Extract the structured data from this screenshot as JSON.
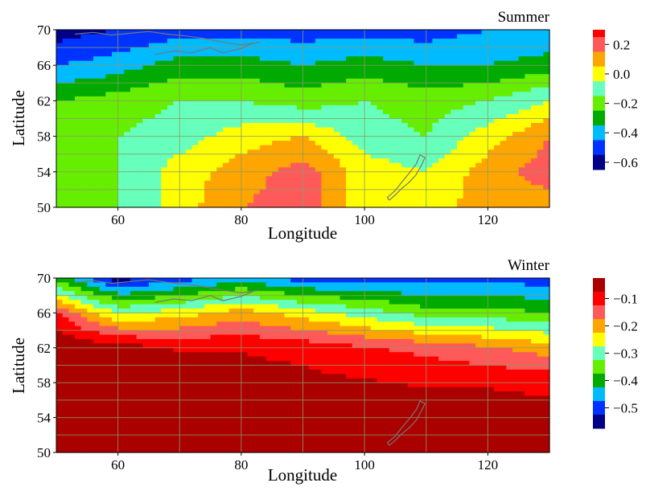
{
  "chart_data": [
    {
      "type": "heatmap",
      "title": "Summer",
      "xlabel": "Longitude",
      "ylabel": "Latitude",
      "xlim": [
        50,
        130
      ],
      "ylim": [
        50,
        70
      ],
      "xticks": [
        "60",
        "80",
        "100",
        "120"
      ],
      "yticks": [
        "50",
        "54",
        "58",
        "62",
        "66",
        "70"
      ],
      "grid": true,
      "colorbar": {
        "ticks": [
          "0.2",
          "0.0",
          "−0.2",
          "−0.4",
          "−0.6"
        ],
        "tick_values": [
          0.2,
          0.0,
          -0.2,
          -0.4,
          -0.6
        ],
        "levels": [
          {
            "max": 0.3,
            "min": 0.25,
            "color": "#ff0000"
          },
          {
            "max": 0.25,
            "min": 0.15,
            "color": "#ff5a5a"
          },
          {
            "max": 0.15,
            "min": 0.05,
            "color": "#ffa500"
          },
          {
            "max": 0.05,
            "min": -0.05,
            "color": "#ffff00"
          },
          {
            "max": -0.05,
            "min": -0.15,
            "color": "#66ffbb"
          },
          {
            "max": -0.15,
            "min": -0.25,
            "color": "#66ee00"
          },
          {
            "max": -0.25,
            "min": -0.35,
            "color": "#00aa00"
          },
          {
            "max": -0.35,
            "min": -0.45,
            "color": "#00bbff"
          },
          {
            "max": -0.45,
            "min": -0.55,
            "color": "#0033ff"
          },
          {
            "max": -0.55,
            "min": -0.65,
            "color": "#000088"
          }
        ]
      },
      "field": {
        "lons": [
          50,
          60,
          70,
          80,
          90,
          100,
          110,
          120,
          130
        ],
        "lats": [
          70,
          66,
          62,
          58,
          54,
          50
        ],
        "values": [
          [
            -0.6,
            -0.55,
            -0.5,
            -0.5,
            -0.5,
            -0.5,
            -0.5,
            -0.45,
            -0.45
          ],
          [
            -0.45,
            -0.4,
            -0.3,
            -0.3,
            -0.35,
            -0.3,
            -0.35,
            -0.35,
            -0.3
          ],
          [
            -0.25,
            -0.2,
            -0.15,
            -0.15,
            -0.2,
            -0.15,
            -0.2,
            -0.15,
            -0.05
          ],
          [
            -0.25,
            -0.15,
            -0.1,
            0.0,
            0.05,
            -0.1,
            -0.15,
            0.0,
            0.15
          ],
          [
            -0.2,
            -0.15,
            0.0,
            0.1,
            0.2,
            0.0,
            -0.05,
            0.1,
            0.2
          ],
          [
            -0.2,
            -0.15,
            0.0,
            0.15,
            0.2,
            0.0,
            0.0,
            0.1,
            0.1
          ]
        ]
      }
    },
    {
      "type": "heatmap",
      "title": "Winter",
      "xlabel": "Longitude",
      "ylabel": "Latitude",
      "xlim": [
        50,
        130
      ],
      "ylim": [
        50,
        70
      ],
      "xticks": [
        "60",
        "80",
        "100",
        "120"
      ],
      "yticks": [
        "50",
        "54",
        "58",
        "62",
        "66",
        "70"
      ],
      "grid": true,
      "colorbar": {
        "ticks": [
          "−0.1",
          "−0.2",
          "−0.3",
          "−0.4",
          "−0.5"
        ],
        "tick_values": [
          -0.1,
          -0.2,
          -0.3,
          -0.4,
          -0.5
        ],
        "levels": [
          {
            "max": -0.025,
            "min": -0.075,
            "color": "#aa0000"
          },
          {
            "max": -0.075,
            "min": -0.125,
            "color": "#ff0000"
          },
          {
            "max": -0.125,
            "min": -0.175,
            "color": "#ff5a5a"
          },
          {
            "max": -0.175,
            "min": -0.225,
            "color": "#ffa500"
          },
          {
            "max": -0.225,
            "min": -0.275,
            "color": "#ffff00"
          },
          {
            "max": -0.275,
            "min": -0.325,
            "color": "#66ffbb"
          },
          {
            "max": -0.325,
            "min": -0.375,
            "color": "#66ee00"
          },
          {
            "max": -0.375,
            "min": -0.425,
            "color": "#00aa00"
          },
          {
            "max": -0.425,
            "min": -0.475,
            "color": "#00bbff"
          },
          {
            "max": -0.475,
            "min": -0.525,
            "color": "#0033ff"
          },
          {
            "max": -0.525,
            "min": -0.575,
            "color": "#000088"
          }
        ]
      },
      "field": {
        "lons": [
          50,
          60,
          70,
          80,
          90,
          100,
          110,
          120,
          130
        ],
        "lats": [
          70,
          66,
          62,
          58,
          54,
          50
        ],
        "values": [
          [
            -0.4,
            -0.55,
            -0.5,
            -0.45,
            -0.5,
            -0.5,
            -0.5,
            -0.5,
            -0.5
          ],
          [
            -0.12,
            -0.28,
            -0.25,
            -0.2,
            -0.25,
            -0.3,
            -0.35,
            -0.35,
            -0.38
          ],
          [
            -0.03,
            -0.05,
            -0.08,
            -0.08,
            -0.09,
            -0.12,
            -0.14,
            -0.17,
            -0.2
          ],
          [
            -0.03,
            -0.03,
            -0.04,
            -0.05,
            -0.06,
            -0.07,
            -0.08,
            -0.08,
            -0.09
          ],
          [
            -0.03,
            -0.03,
            -0.04,
            -0.05,
            -0.05,
            -0.05,
            -0.05,
            -0.05,
            -0.05
          ],
          [
            -0.03,
            -0.03,
            -0.04,
            -0.05,
            -0.05,
            -0.05,
            -0.05,
            -0.05,
            -0.05
          ]
        ]
      }
    }
  ]
}
